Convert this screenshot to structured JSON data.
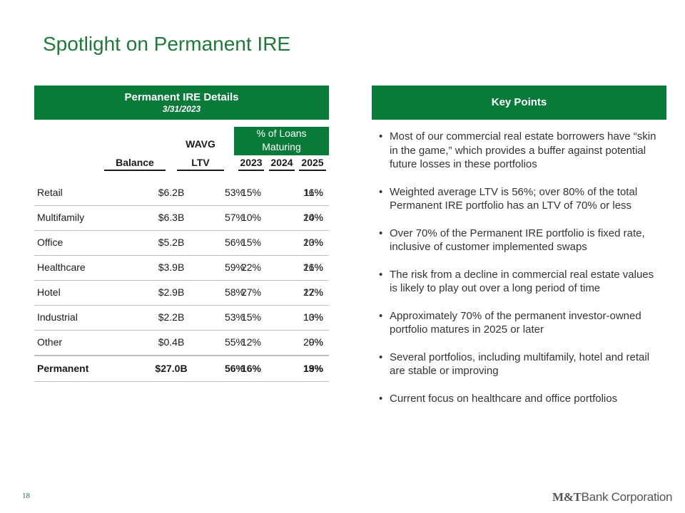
{
  "title": "Spotlight on Permanent IRE",
  "details_header": {
    "title": "Permanent IRE Details",
    "date": "3/31/2023"
  },
  "key_points_header": "Key Points",
  "table": {
    "wavg_label": "WAVG",
    "maturing_label_line1": "% of Loans",
    "maturing_label_line2": "Maturing",
    "columns": {
      "balance": "Balance",
      "ltv": "LTV",
      "y2023": "2023",
      "y2024": "2024",
      "y2025": "2025"
    },
    "rows": [
      {
        "name": "Retail",
        "balance": "$6.2B",
        "ltv": "53%",
        "y2023": "15%",
        "y2024": "11%",
        "y2025": "16%"
      },
      {
        "name": "Multifamily",
        "balance": "$6.3B",
        "ltv": "57%",
        "y2023": "10%",
        "y2024": "10%",
        "y2025": "24%"
      },
      {
        "name": "Office",
        "balance": "$5.2B",
        "ltv": "56%",
        "y2023": "15%",
        "y2024": "10%",
        "y2025": "23%"
      },
      {
        "name": "Healthcare",
        "balance": "$3.9B",
        "ltv": "59%",
        "y2023": "22%",
        "y2024": "21%",
        "y2025": "16%"
      },
      {
        "name": "Hotel",
        "balance": "$2.9B",
        "ltv": "58%",
        "y2023": "27%",
        "y2024": "22%",
        "y2025": "17%"
      },
      {
        "name": "Industrial",
        "balance": "$2.2B",
        "ltv": "53%",
        "y2023": "15%",
        "y2024": "10%",
        "y2025": "13%"
      },
      {
        "name": "Other",
        "balance": "$0.4B",
        "ltv": "55%",
        "y2023": "12%",
        "y2024": "9%",
        "y2025": "20%"
      },
      {
        "name": "Permanent",
        "balance": "$27.0B",
        "ltv": "56%",
        "y2023": "16%",
        "y2024": "13%",
        "y2025": "19%"
      }
    ]
  },
  "key_points": [
    "Most of our commercial real estate borrowers have “skin in the game,” which provides a buffer against potential future losses in these portfolios",
    "Weighted average LTV is 56%; over 80% of the total Permanent IRE portfolio has an LTV of 70% or less",
    "Over 70% of the Permanent IRE portfolio is fixed rate, inclusive of customer implemented swaps",
    "The risk from a decline in commercial real estate values is likely to play out over a long period of time",
    "Approximately 70% of the permanent investor-owned portfolio matures in 2025 or later",
    "Several portfolios, including multifamily, hotel and retail are stable or improving",
    "Current focus on healthcare and office portfolios"
  ],
  "bullet_char": "•",
  "page_number": "18",
  "logo": {
    "mark": "M&T",
    "text": "Bank Corporation"
  },
  "colors": {
    "brand_green": "#0a7a3b",
    "title_green": "#1f7a3a"
  }
}
